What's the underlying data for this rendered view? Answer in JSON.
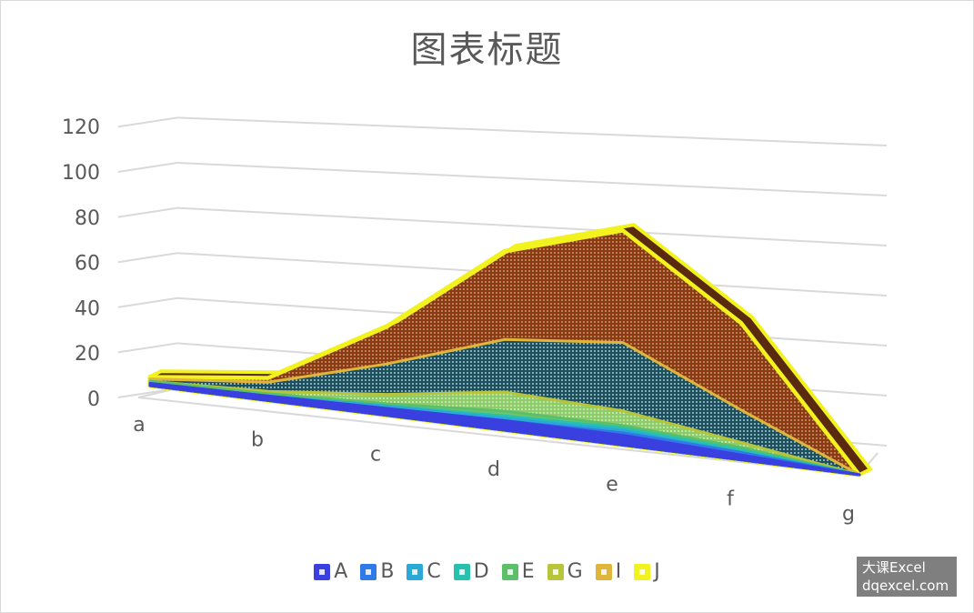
{
  "chart_data": {
    "type": "area",
    "title": "图表标题",
    "categories": [
      "a",
      "b",
      "c",
      "d",
      "e",
      "f",
      "g"
    ],
    "ylim": [
      0,
      120
    ],
    "yticks": [
      0,
      20,
      40,
      60,
      80,
      100,
      120
    ],
    "grid": true,
    "legend_position": "bottom",
    "series": [
      {
        "name": "A",
        "color": "#3a3fe0",
        "values": [
          1,
          2,
          3,
          4,
          4,
          2,
          0
        ]
      },
      {
        "name": "B",
        "color": "#2f79e8",
        "values": [
          1,
          2,
          3,
          4,
          5,
          3,
          0
        ]
      },
      {
        "name": "C",
        "color": "#2aa8d8",
        "values": [
          1,
          2,
          4,
          5,
          6,
          3,
          0
        ]
      },
      {
        "name": "D",
        "color": "#27c1b0",
        "values": [
          1,
          2,
          4,
          6,
          7,
          4,
          0
        ]
      },
      {
        "name": "E",
        "color": "#5cc06a",
        "values": [
          2,
          3,
          5,
          8,
          8,
          5,
          0
        ]
      },
      {
        "name": "G",
        "color": "#b8c43a",
        "values": [
          2,
          4,
          9,
          16,
          14,
          7,
          0
        ]
      },
      {
        "name": "I",
        "color": "#e0b53c",
        "values": [
          3,
          8,
          22,
          38,
          42,
          20,
          0
        ]
      },
      {
        "name": "J",
        "color": "#f2f21e",
        "values": [
          4,
          10,
          38,
          75,
          88,
          55,
          0
        ]
      }
    ]
  },
  "watermark": {
    "line1": "大课Excel",
    "line2": "dqexcel.com"
  }
}
